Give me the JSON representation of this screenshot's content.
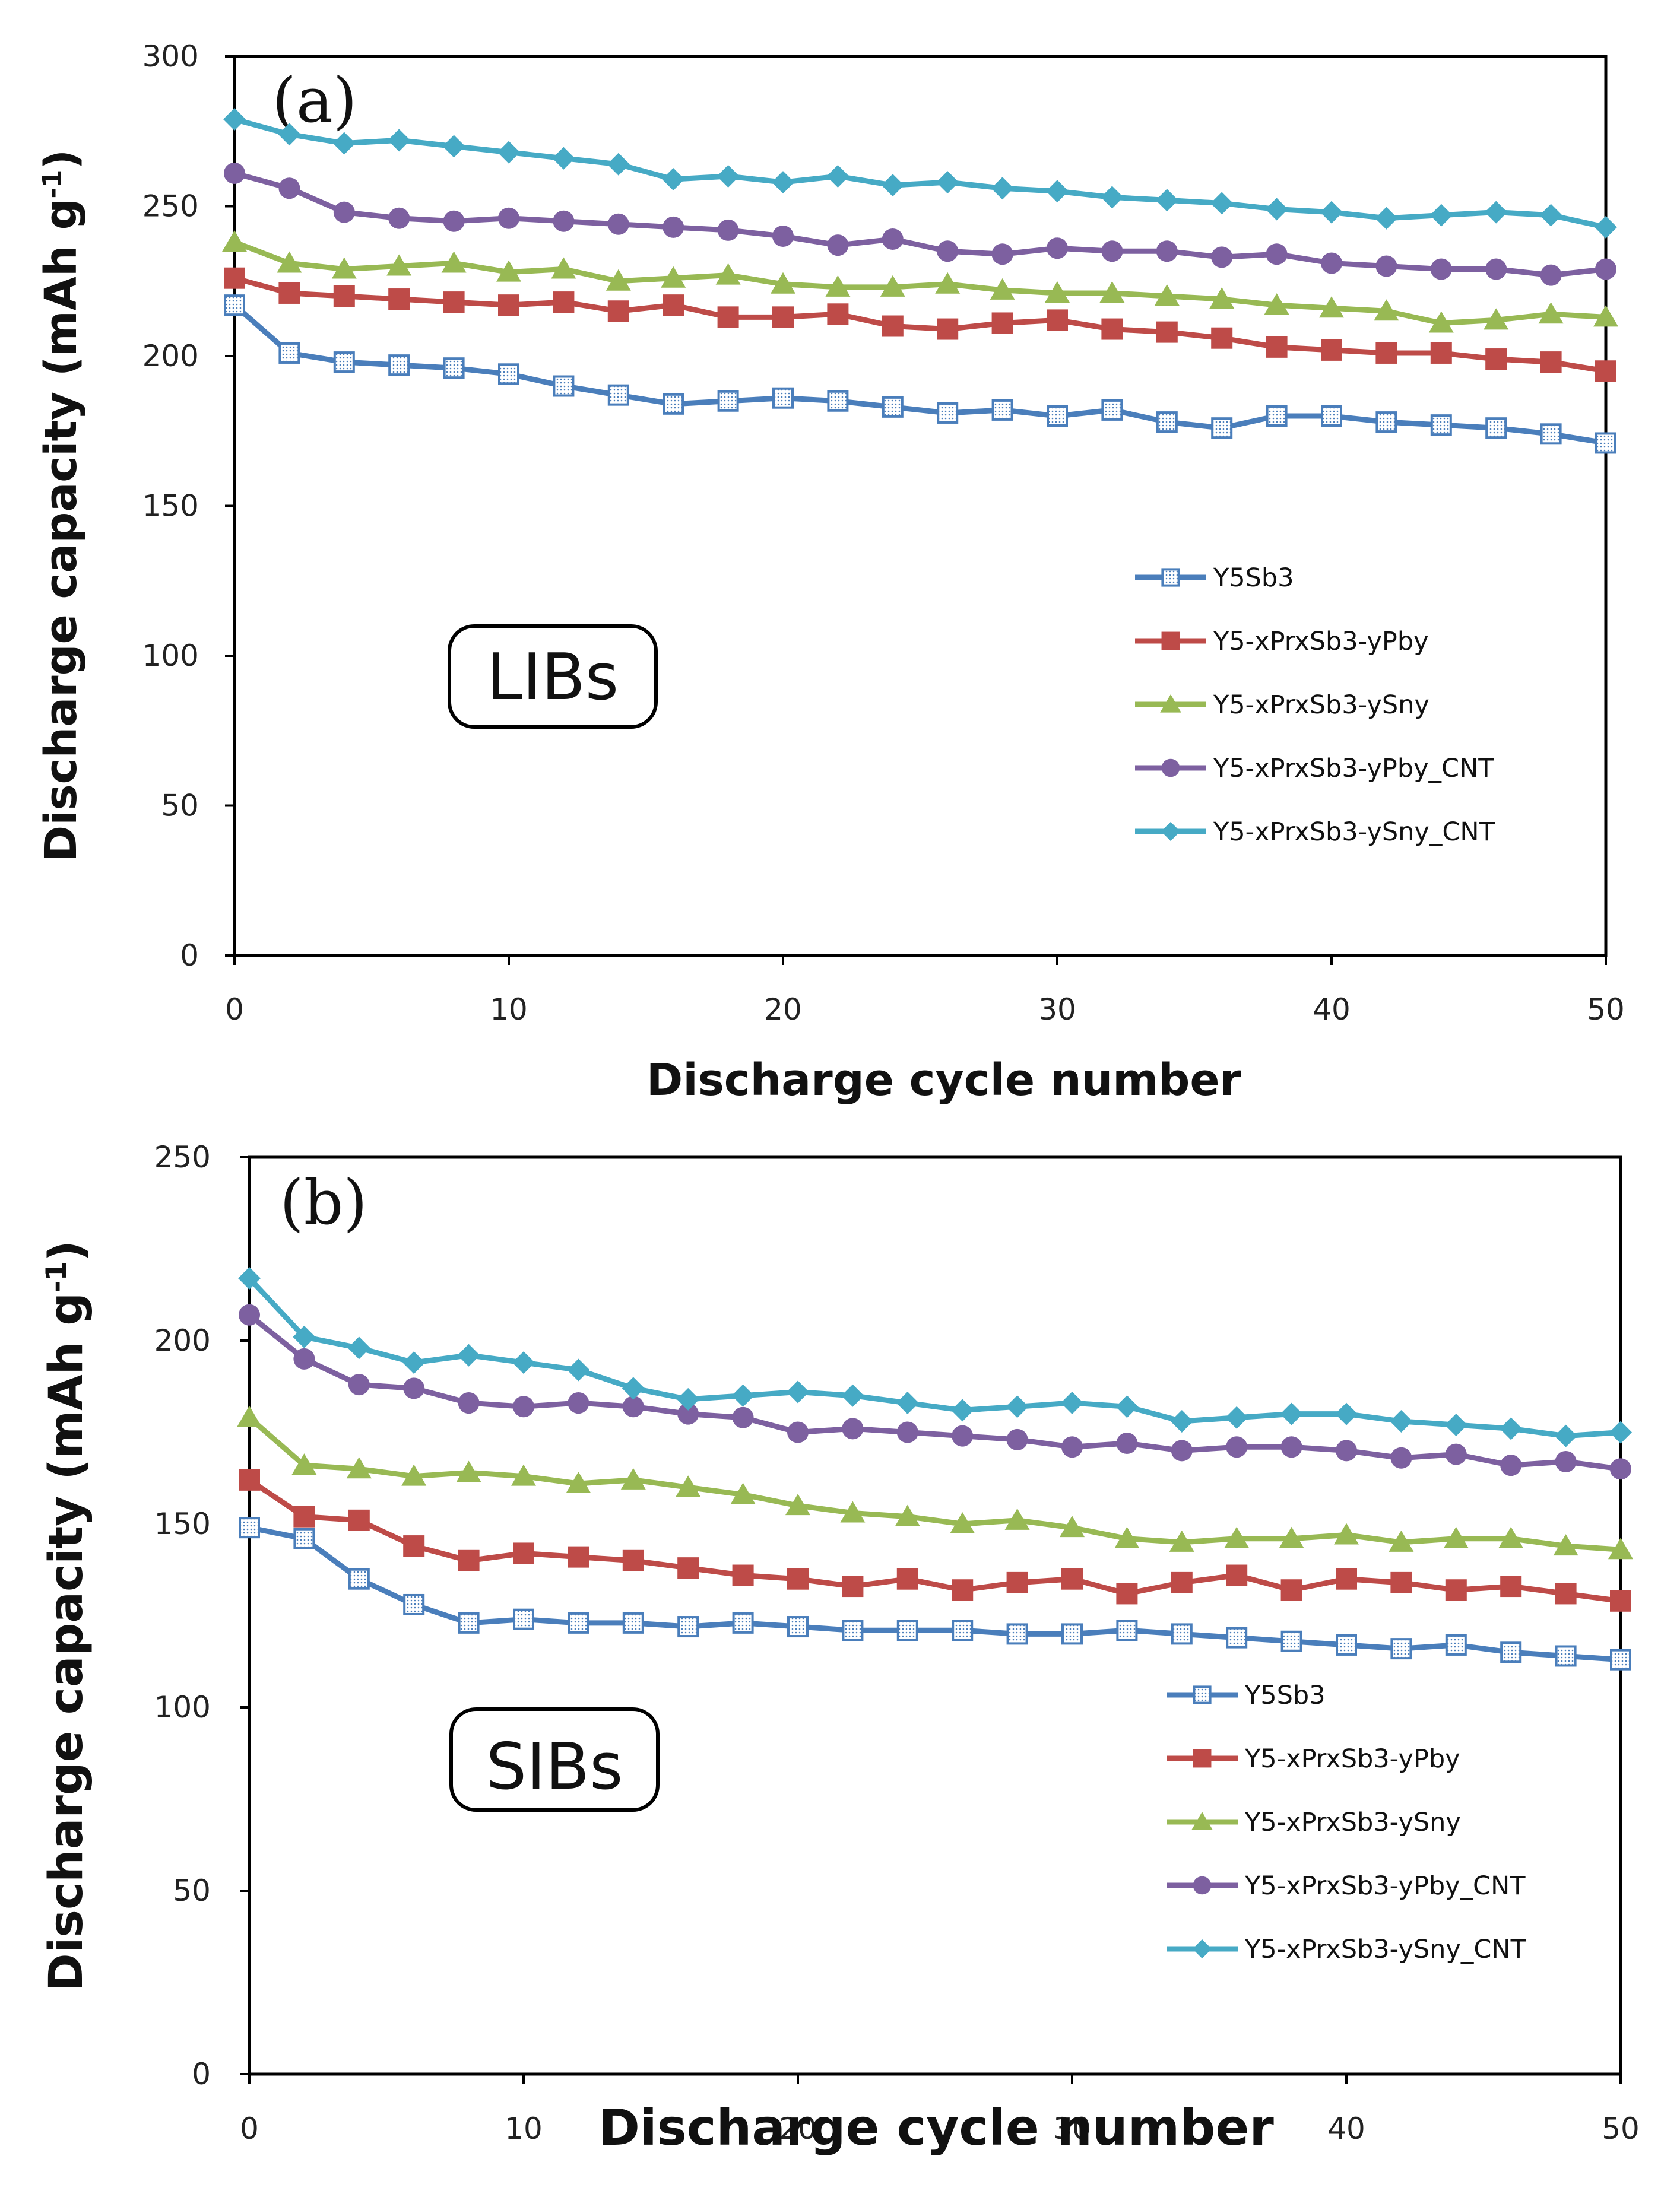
{
  "chart_data": [
    {
      "type": "line",
      "panel_label": "(a)",
      "box_label": "LIBs",
      "xlabel": "Discharge  cycle number",
      "ylabel": "Discharge  capacity (mAh g",
      "ylabel_sup": "-1",
      "ylabel_close": ")",
      "xlim": [
        0,
        50
      ],
      "ylim": [
        0,
        300
      ],
      "xticks": [
        0,
        10,
        20,
        30,
        40,
        50
      ],
      "yticks": [
        0,
        50,
        100,
        150,
        200,
        250,
        300
      ],
      "legend_position": "center-right",
      "x": [
        0,
        2,
        4,
        6,
        8,
        10,
        12,
        14,
        16,
        18,
        20,
        22,
        24,
        26,
        28,
        30,
        32,
        34,
        36,
        38,
        40,
        42,
        44,
        46,
        48,
        50
      ],
      "series": [
        {
          "name": "Y5Sb3",
          "marker": "square-dotted",
          "color": "#4a7ebb",
          "values": [
            217,
            201,
            198,
            197,
            196,
            194,
            190,
            187,
            184,
            185,
            186,
            185,
            183,
            181,
            182,
            180,
            182,
            178,
            176,
            180,
            180,
            178,
            177,
            176,
            174,
            171
          ]
        },
        {
          "name": "Y5-xPrxSb3-yPby",
          "marker": "square",
          "color": "#be4b48",
          "values": [
            226,
            221,
            220,
            219,
            218,
            217,
            218,
            215,
            217,
            213,
            213,
            214,
            210,
            209,
            211,
            212,
            209,
            208,
            206,
            203,
            202,
            201,
            201,
            199,
            198,
            195
          ]
        },
        {
          "name": "Y5-xPrxSb3-ySny",
          "marker": "triangle",
          "color": "#98b954",
          "values": [
            238,
            231,
            229,
            230,
            231,
            228,
            229,
            225,
            226,
            227,
            224,
            223,
            223,
            224,
            222,
            221,
            221,
            220,
            219,
            217,
            216,
            215,
            211,
            212,
            214,
            213
          ]
        },
        {
          "name": "Y5-xPrxSb3-yPby_CNT",
          "marker": "circle",
          "color": "#7d60a0",
          "values": [
            261,
            256,
            248,
            246,
            245,
            246,
            245,
            244,
            243,
            242,
            240,
            237,
            239,
            235,
            234,
            236,
            235,
            235,
            233,
            234,
            231,
            230,
            229,
            229,
            227,
            229
          ]
        },
        {
          "name": "Y5-xPrxSb3-ySny_CNT",
          "marker": "diamond",
          "color": "#46aac5",
          "values": [
            279,
            274,
            271,
            272,
            270,
            268,
            266,
            264,
            259,
            260,
            258,
            260,
            257,
            258,
            256,
            255,
            253,
            252,
            251,
            249,
            248,
            246,
            247,
            248,
            247,
            243
          ]
        }
      ]
    },
    {
      "type": "line",
      "panel_label": "(b)",
      "box_label": "SIBs",
      "xlabel": "Discharge cycle number",
      "ylabel": "Discharge capacity (mAh g",
      "ylabel_sup": "-1",
      "ylabel_close": ")",
      "xlim": [
        0,
        50
      ],
      "ylim": [
        0,
        250
      ],
      "xticks": [
        0,
        10,
        20,
        30,
        40,
        50
      ],
      "yticks": [
        0,
        50,
        100,
        150,
        200,
        250
      ],
      "legend_position": "lower-right",
      "x": [
        0,
        2,
        4,
        6,
        8,
        10,
        12,
        14,
        16,
        18,
        20,
        22,
        24,
        26,
        28,
        30,
        32,
        34,
        36,
        38,
        40,
        42,
        44,
        46,
        48,
        50
      ],
      "series": [
        {
          "name": "Y5Sb3",
          "marker": "square-dotted",
          "color": "#4a7ebb",
          "values": [
            149,
            146,
            135,
            128,
            123,
            124,
            123,
            123,
            122,
            123,
            122,
            121,
            121,
            121,
            120,
            120,
            121,
            120,
            119,
            118,
            117,
            116,
            117,
            115,
            114,
            113
          ]
        },
        {
          "name": "Y5-xPrxSb3-yPby",
          "marker": "square",
          "color": "#be4b48",
          "values": [
            162,
            152,
            151,
            144,
            140,
            142,
            141,
            140,
            138,
            136,
            135,
            133,
            135,
            132,
            134,
            135,
            131,
            134,
            136,
            132,
            135,
            134,
            132,
            133,
            131,
            129
          ]
        },
        {
          "name": "Y5-xPrxSb3-ySny",
          "marker": "triangle",
          "color": "#98b954",
          "values": [
            179,
            166,
            165,
            163,
            164,
            163,
            161,
            162,
            160,
            158,
            155,
            153,
            152,
            150,
            151,
            149,
            146,
            145,
            146,
            146,
            147,
            145,
            146,
            146,
            144,
            143
          ]
        },
        {
          "name": "Y5-xPrxSb3-yPby_CNT",
          "marker": "circle",
          "color": "#7d60a0",
          "values": [
            207,
            195,
            188,
            187,
            183,
            182,
            183,
            182,
            180,
            179,
            175,
            176,
            175,
            174,
            173,
            171,
            172,
            170,
            171,
            171,
            170,
            168,
            169,
            166,
            167,
            165
          ]
        },
        {
          "name": "Y5-xPrxSb3-ySny_CNT",
          "marker": "diamond",
          "color": "#46aac5",
          "values": [
            217,
            201,
            198,
            194,
            196,
            194,
            192,
            187,
            184,
            185,
            186,
            185,
            183,
            181,
            182,
            183,
            182,
            178,
            179,
            180,
            180,
            178,
            177,
            176,
            174,
            175
          ]
        }
      ]
    }
  ]
}
